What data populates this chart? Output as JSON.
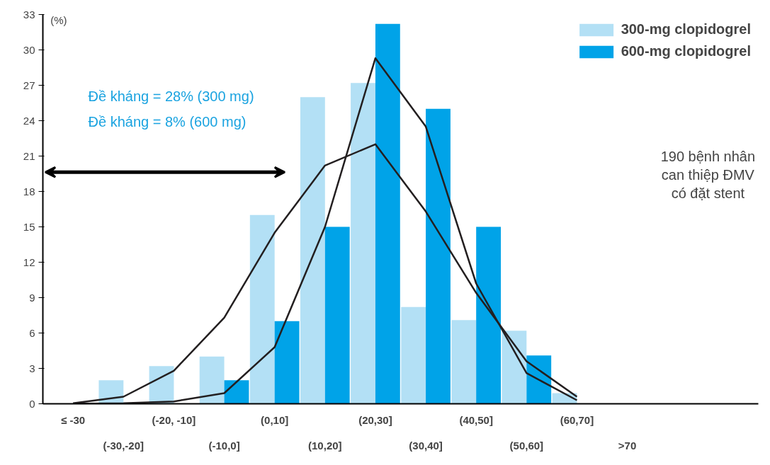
{
  "chart_data": {
    "type": "bar",
    "ylabel": "(%)",
    "categories": [
      "≤ -30",
      "(-30,-20]",
      "(-20, -10]",
      "(-10,0]",
      "(0,10]",
      "(10,20]",
      "(20,30]",
      "(30,40]",
      "(40,50]",
      "(50,60]",
      "(60,70]",
      ">70"
    ],
    "series": [
      {
        "name": "300-mg clopidogrel",
        "color": "#b3e0f5",
        "values": [
          0,
          2,
          3.2,
          4,
          16,
          26,
          27.2,
          8.2,
          7.1,
          6.2,
          0.9,
          0
        ]
      },
      {
        "name": "600-mg clopidogrel",
        "color": "#00a3e8",
        "values": [
          0,
          0,
          0,
          2,
          7,
          15,
          32.2,
          25,
          15,
          4.1,
          0,
          0
        ]
      },
      {
        "type": "line",
        "color": "#231f20",
        "values": [
          0.05,
          0.6,
          2.8,
          7.3,
          14.5,
          20.2,
          22,
          16.3,
          9.4,
          3.6,
          0.6,
          null
        ]
      },
      {
        "type": "line",
        "color": "#231f20",
        "values": [
          0,
          0.05,
          0.2,
          0.9,
          4.8,
          15,
          29.3,
          23.5,
          10.2,
          2.6,
          0.3,
          null
        ]
      }
    ],
    "ylim": [
      0,
      33
    ],
    "yticks": [
      0,
      3,
      6,
      9,
      12,
      15,
      18,
      21,
      24,
      27,
      30,
      33
    ],
    "grid": false,
    "legend": "top right",
    "annotations": [
      "Đề kháng = 28% (300 mg)",
      "Đề kháng = 8% (600 mg)",
      "190 bệnh nhân\ncan thiệp ĐMV\ncó đặt stent"
    ]
  }
}
